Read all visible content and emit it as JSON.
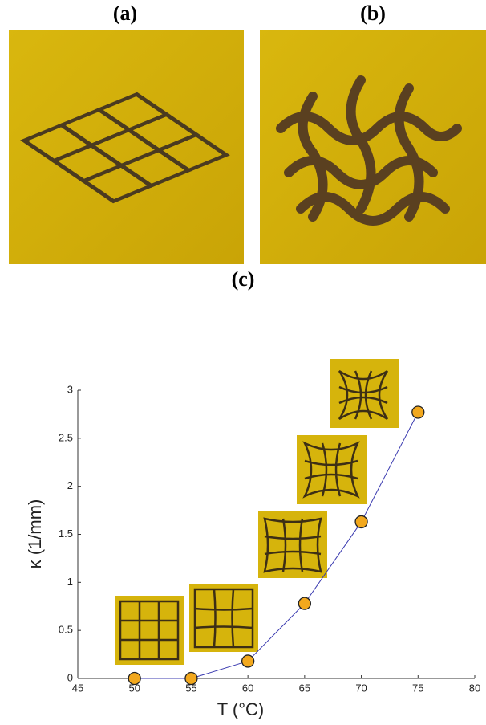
{
  "panels": [
    {
      "label": "(a)"
    },
    {
      "label": "(b)"
    }
  ],
  "chart_data": {
    "type": "line",
    "title": "(c)",
    "x_label": "T (°C)",
    "y_label": "κ (1/mm)",
    "x": [
      50,
      55,
      60,
      65,
      70,
      75
    ],
    "series": [
      {
        "name": "κ",
        "color": "#3b3bb0",
        "marker_color": "#f2a81d",
        "values": [
          0,
          0,
          0.18,
          0.78,
          1.63,
          2.77
        ]
      }
    ],
    "xlim": [
      45,
      80
    ],
    "xticks": [
      45,
      50,
      55,
      60,
      65,
      70,
      75,
      80
    ],
    "ylim": [
      0,
      3
    ],
    "yticks": [
      0,
      0.5,
      1,
      1.5,
      2,
      2.5,
      3
    ],
    "grid": false
  }
}
